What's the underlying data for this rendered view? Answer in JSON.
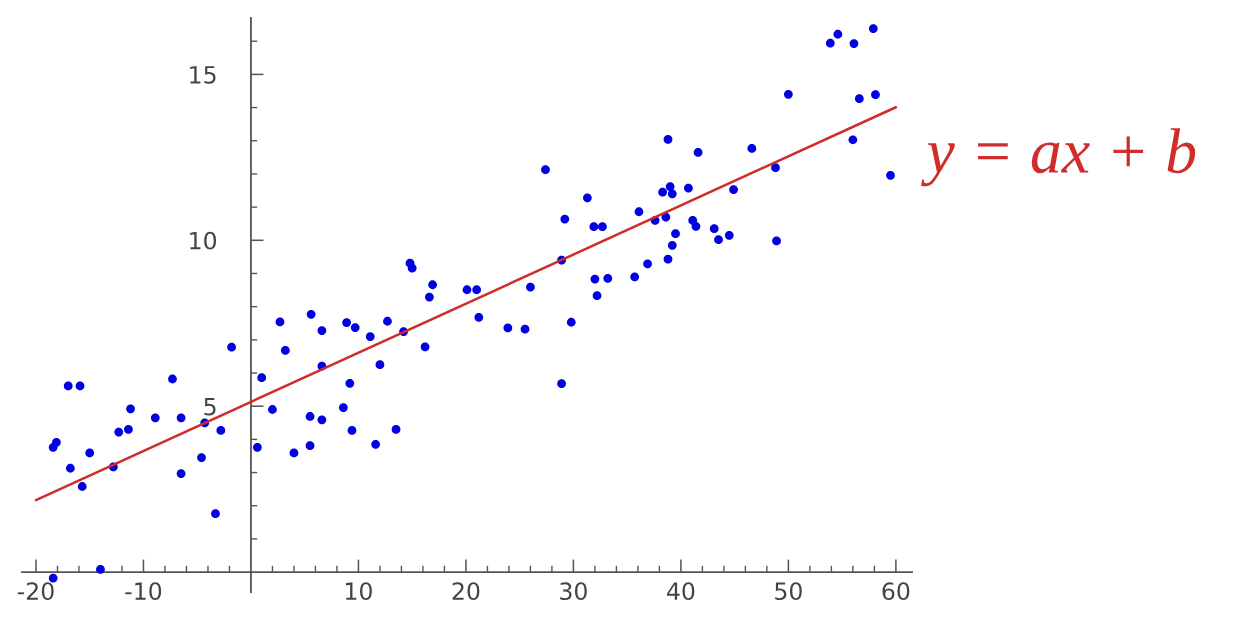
{
  "chart_data": {
    "type": "scatter",
    "series": [
      {
        "color": "#0000e0",
        "marker": "circle",
        "x": [
          -18.4,
          -18.1,
          -17.0,
          -15.9,
          -16.8,
          -15.0,
          -15.7,
          -12.8,
          -12.3,
          -11.4,
          -11.2,
          -8.9,
          -7.3,
          -6.5,
          -6.5,
          -4.6,
          -4.3,
          -2.8,
          -3.3,
          -1.8,
          -14.0,
          -18.4,
          0.6,
          1.0,
          2.0,
          2.7,
          3.2,
          4.0,
          5.5,
          5.5,
          5.6,
          6.6,
          6.6,
          6.6,
          8.9,
          9.7,
          11.1,
          12.7,
          14.2,
          14.8,
          15.0,
          16.9,
          16.6,
          16.2,
          12.0,
          9.2,
          8.6,
          9.4,
          11.6,
          13.5,
          20.1,
          21.0,
          21.2,
          23.9,
          25.5,
          26.0,
          28.9,
          29.2,
          29.8,
          28.9,
          31.3,
          31.9,
          32.7,
          32.0,
          32.2,
          27.4,
          33.2,
          35.7,
          36.9,
          36.1,
          38.8,
          38.3,
          39.0,
          39.2,
          40.7,
          41.6,
          37.6,
          38.6,
          39.5,
          39.2,
          38.8,
          41.1,
          41.4,
          43.1,
          43.5,
          44.5,
          44.9,
          46.6,
          48.8,
          48.9,
          56.0,
          59.5,
          50.0,
          53.9,
          54.6,
          56.1,
          57.9,
          56.6,
          58.1
        ],
        "values": [
          3.76,
          3.91,
          5.61,
          5.61,
          3.13,
          3.59,
          2.58,
          3.17,
          4.22,
          4.3,
          4.92,
          4.65,
          5.82,
          4.65,
          2.97,
          3.45,
          4.5,
          4.27,
          1.76,
          6.78,
          0.08,
          -0.18,
          3.76,
          5.86,
          4.9,
          7.54,
          6.68,
          3.59,
          3.81,
          4.69,
          7.77,
          7.28,
          6.21,
          4.59,
          7.52,
          7.37,
          7.1,
          7.56,
          7.25,
          9.31,
          9.16,
          8.66,
          8.29,
          6.79,
          6.25,
          5.69,
          4.96,
          4.27,
          3.85,
          4.3,
          8.51,
          8.51,
          7.68,
          7.36,
          7.32,
          8.59,
          9.4,
          10.64,
          7.53,
          5.68,
          11.28,
          10.41,
          10.41,
          8.83,
          8.33,
          12.13,
          8.85,
          8.9,
          9.29,
          10.86,
          13.04,
          11.45,
          11.62,
          11.4,
          11.57,
          12.65,
          10.6,
          10.7,
          10.2,
          9.85,
          9.43,
          10.6,
          10.42,
          10.35,
          10.02,
          10.15,
          11.53,
          12.77,
          12.19,
          9.98,
          13.03,
          11.96,
          14.4,
          15.94,
          16.21,
          15.93,
          16.38,
          14.27,
          14.39
        ]
      },
      {
        "type": "line",
        "name": "y = ax + b",
        "color": "#d02c2c",
        "line_style": "solid",
        "x": [
          -20,
          60
        ],
        "values": [
          2.17,
          14.01
        ]
      }
    ],
    "xlim": [
      -21.3,
      61.5
    ],
    "ylim": [
      -0.6,
      16.7
    ],
    "xticks": [
      -20,
      {
        "value": -18,
        "label": null
      },
      {
        "value": -16,
        "label": null
      },
      {
        "value": -14,
        "label": null
      },
      {
        "value": -12,
        "label": null
      },
      -10,
      {
        "value": -8,
        "label": null
      },
      {
        "value": -6,
        "label": null
      },
      {
        "value": -4,
        "label": null
      },
      {
        "value": -2,
        "label": null
      },
      {
        "value": 2,
        "label": null
      },
      {
        "value": 4,
        "label": null
      },
      {
        "value": 6,
        "label": null
      },
      {
        "value": 8,
        "label": null
      },
      10,
      {
        "value": 12,
        "label": null
      },
      {
        "value": 14,
        "label": null
      },
      {
        "value": 16,
        "label": null
      },
      {
        "value": 18,
        "label": null
      },
      20,
      {
        "value": 22,
        "label": null
      },
      {
        "value": 24,
        "label": null
      },
      {
        "value": 26,
        "label": null
      },
      {
        "value": 28,
        "label": null
      },
      30,
      {
        "value": 32,
        "label": null
      },
      {
        "value": 34,
        "label": null
      },
      {
        "value": 36,
        "label": null
      },
      {
        "value": 38,
        "label": null
      },
      40,
      {
        "value": 42,
        "label": null
      },
      {
        "value": 44,
        "label": null
      },
      {
        "value": 46,
        "label": null
      },
      {
        "value": 48,
        "label": null
      },
      50,
      {
        "value": 52,
        "label": null
      },
      {
        "value": 54,
        "label": null
      },
      {
        "value": 56,
        "label": null
      },
      {
        "value": 58,
        "label": null
      },
      60
    ],
    "yticks": [
      {
        "value": 1,
        "label": null
      },
      {
        "value": 2,
        "label": null
      },
      {
        "value": 3,
        "label": null
      },
      {
        "value": 4,
        "label": null
      },
      5,
      {
        "value": 6,
        "label": null
      },
      {
        "value": 7,
        "label": null
      },
      {
        "value": 8,
        "label": null
      },
      {
        "value": 9,
        "label": null
      },
      10,
      {
        "value": 11,
        "label": null
      },
      {
        "value": 12,
        "label": null
      },
      {
        "value": 13,
        "label": null
      },
      {
        "value": 14,
        "label": null
      },
      15,
      {
        "value": 16,
        "label": null
      }
    ]
  }
}
